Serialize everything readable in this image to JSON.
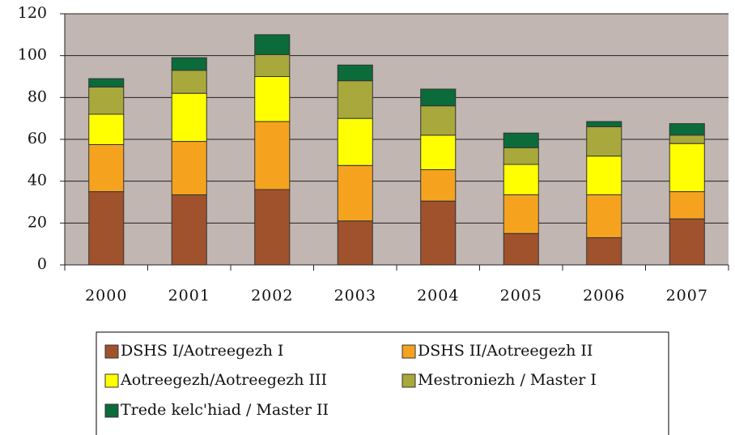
{
  "chart_data": {
    "type": "stacked_bar",
    "categories": [
      "2000",
      "2001",
      "2002",
      "2003",
      "2004",
      "2005",
      "2006",
      "2007"
    ],
    "series": [
      {
        "name": "DSHS I/Aotreegezh I",
        "color": "#a0522d",
        "values": [
          35,
          33.5,
          36,
          21,
          30.5,
          15,
          13,
          22
        ]
      },
      {
        "name": "DSHS II/Aotreegezh II",
        "color": "#f5a31f",
        "values": [
          22.5,
          25.5,
          32.5,
          26.5,
          15,
          18.5,
          20.5,
          13
        ]
      },
      {
        "name": "Aotreegezh/Aotreegezh III",
        "color": "#ffff00",
        "values": [
          14.5,
          23,
          21.5,
          22.5,
          16.5,
          14.5,
          18.5,
          23
        ]
      },
      {
        "name": "Mestroniezh / Master I",
        "color": "#a8a83c",
        "values": [
          13,
          11,
          10.5,
          18,
          14,
          8,
          14,
          4
        ]
      },
      {
        "name": "Trede kelc'hiad / Master II",
        "color": "#0b6b3a",
        "values": [
          4,
          6,
          9.5,
          7.5,
          8,
          7,
          2.5,
          5.5
        ]
      }
    ],
    "ylim": [
      0,
      120
    ],
    "yticks": [
      0,
      20,
      40,
      60,
      80,
      100,
      120
    ],
    "grid": true,
    "plot_background": "#c1b6b1"
  }
}
